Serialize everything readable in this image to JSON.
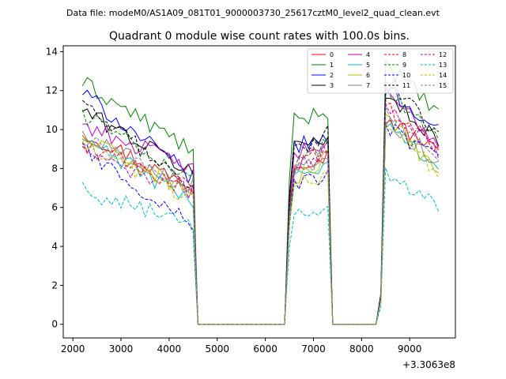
{
  "header": {
    "file_label": "Data file: modeM0/AS1A09_081T01_9000003730_25617cztM0_level2_quad_clean.evt"
  },
  "chart_data": {
    "type": "line",
    "title": "Quadrant 0 module wise count rates with 100.0s bins.",
    "xlabel": "",
    "ylabel": "",
    "x_offset_label": "+3.3063e8",
    "xlim": [
      1800,
      9950
    ],
    "ylim": [
      -0.7,
      14.3
    ],
    "xticks": [
      2000,
      3000,
      4000,
      5000,
      6000,
      7000,
      8000,
      9000
    ],
    "yticks": [
      0,
      2,
      4,
      6,
      8,
      10,
      12,
      14
    ],
    "grid": false,
    "legend": {
      "placement": "top-right",
      "columns": 4
    },
    "segments": [
      {
        "start": 2200,
        "end": 4500,
        "drop_end": 4600
      },
      {
        "start": 6500,
        "end": 7300,
        "drop_end": 7400
      },
      {
        "start": 8500,
        "end": 9600,
        "drop_end": 9600
      }
    ],
    "zero_runs": [
      [
        4600,
        6400
      ],
      [
        7400,
        8300
      ]
    ],
    "series": [
      {
        "name": "0",
        "color": "#ff0000",
        "dash": "solid",
        "levels": [
          9.9,
          8.3,
          10.6
        ],
        "ends": [
          7.0,
          8.7,
          8.8
        ]
      },
      {
        "name": "1",
        "color": "#008000",
        "dash": "solid",
        "levels": [
          12.4,
          10.3,
          13.4
        ],
        "ends": [
          8.9,
          11.0,
          10.8
        ]
      },
      {
        "name": "2",
        "color": "#0000ff",
        "dash": "solid",
        "levels": [
          11.9,
          9.0,
          12.2
        ],
        "ends": [
          7.5,
          9.6,
          9.9
        ]
      },
      {
        "name": "3",
        "color": "#000000",
        "dash": "solid",
        "levels": [
          11.0,
          9.1,
          11.6
        ],
        "ends": [
          7.8,
          9.7,
          9.6
        ]
      },
      {
        "name": "4",
        "color": "#bf00bf",
        "dash": "solid",
        "levels": [
          10.3,
          8.6,
          11.8
        ],
        "ends": [
          8.0,
          9.3,
          9.4
        ]
      },
      {
        "name": "5",
        "color": "#00bfbf",
        "dash": "solid",
        "levels": [
          9.5,
          7.6,
          10.2
        ],
        "ends": [
          6.3,
          8.1,
          8.2
        ]
      },
      {
        "name": "6",
        "color": "#bfbf00",
        "dash": "solid",
        "levels": [
          9.6,
          7.2,
          10.5
        ],
        "ends": [
          6.7,
          8.5,
          7.9
        ]
      },
      {
        "name": "7",
        "color": "#808080",
        "dash": "solid",
        "levels": [
          9.8,
          7.9,
          10.4
        ],
        "ends": [
          7.1,
          8.8,
          8.4
        ]
      },
      {
        "name": "8",
        "color": "#ff0000",
        "dash": "dashed",
        "levels": [
          9.2,
          8.0,
          11.1
        ],
        "ends": [
          6.9,
          8.9,
          9.1
        ]
      },
      {
        "name": "9",
        "color": "#008000",
        "dash": "dashed",
        "levels": [
          10.8,
          8.2,
          12.4
        ],
        "ends": [
          7.4,
          9.2,
          9.3
        ]
      },
      {
        "name": "10",
        "color": "#0000ff",
        "dash": "dashed",
        "levels": [
          9.0,
          7.0,
          10.2
        ],
        "ends": [
          5.1,
          7.7,
          8.4
        ]
      },
      {
        "name": "11",
        "color": "#000000",
        "dash": "dashed",
        "levels": [
          11.2,
          8.8,
          12.9
        ],
        "ends": [
          7.1,
          9.8,
          9.5
        ]
      },
      {
        "name": "12",
        "color": "#bf00bf",
        "dash": "dashed",
        "levels": [
          8.8,
          7.9,
          11.3
        ],
        "ends": [
          6.8,
          9.0,
          8.9
        ]
      },
      {
        "name": "13",
        "color": "#00bfbf",
        "dash": "dashed",
        "levels": [
          6.9,
          5.5,
          7.7
        ],
        "ends": [
          5.0,
          6.2,
          6.1
        ]
      },
      {
        "name": "14",
        "color": "#bfbf00",
        "dash": "dashed",
        "levels": [
          9.1,
          7.1,
          10.4
        ],
        "ends": [
          6.5,
          7.8,
          7.7
        ]
      },
      {
        "name": "15",
        "color": "#808080",
        "dash": "dashed",
        "levels": [
          9.5,
          7.8,
          10.9
        ],
        "ends": [
          6.9,
          8.6,
          8.5
        ]
      }
    ]
  }
}
